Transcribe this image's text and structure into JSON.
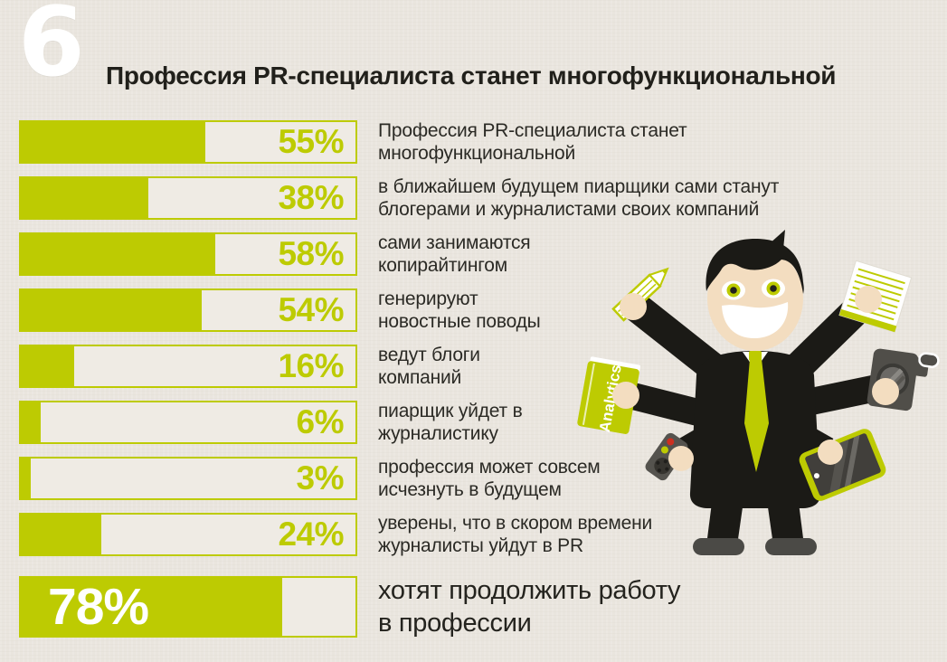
{
  "page": {
    "index_number": "6",
    "title": "Профессия PR-специалиста станет многофункциональной",
    "colors": {
      "accent": "#bdcb02",
      "background": "#ebe7e0",
      "track": "#efebe4",
      "ink": "#26251f",
      "suit": "#1b1a16",
      "skin": "#f3ddc0",
      "device_gray": "#504e49",
      "button_red": "#cd2f1f",
      "white": "#ffffff"
    }
  },
  "chart_data": {
    "type": "bar",
    "orientation": "horizontal",
    "value_unit": "%",
    "xlim": [
      0,
      100
    ],
    "grid": false,
    "legend": false,
    "title": "Профессия PR-специалиста станет многофункциональной",
    "bar_color": "#bdcb02",
    "rows": [
      {
        "value": 55,
        "label": "Профессия PR-специалиста станет\nмногофункциональной"
      },
      {
        "value": 38,
        "label": "в ближайшем будущем пиарщики сами станут\nблогерами и журналистами своих компаний"
      },
      {
        "value": 58,
        "label": "сами занимаются\nкопирайтингом"
      },
      {
        "value": 54,
        "label": "генерируют\nновостные поводы"
      },
      {
        "value": 16,
        "label": "ведут блоги\nкомпаний"
      },
      {
        "value": 6,
        "label": "пиарщик уйдет в\nжурналистику"
      },
      {
        "value": 3,
        "label": "профессия может совсем\nисчезнуть в будущем"
      },
      {
        "value": 24,
        "label": "уверены, что в скором времени\nжурналисты уйдут в PR"
      }
    ],
    "highlight_row": {
      "value": 78,
      "label": "хотят продолжить работу\nв профессии"
    }
  },
  "illustration": {
    "book_title": "Analytics"
  }
}
